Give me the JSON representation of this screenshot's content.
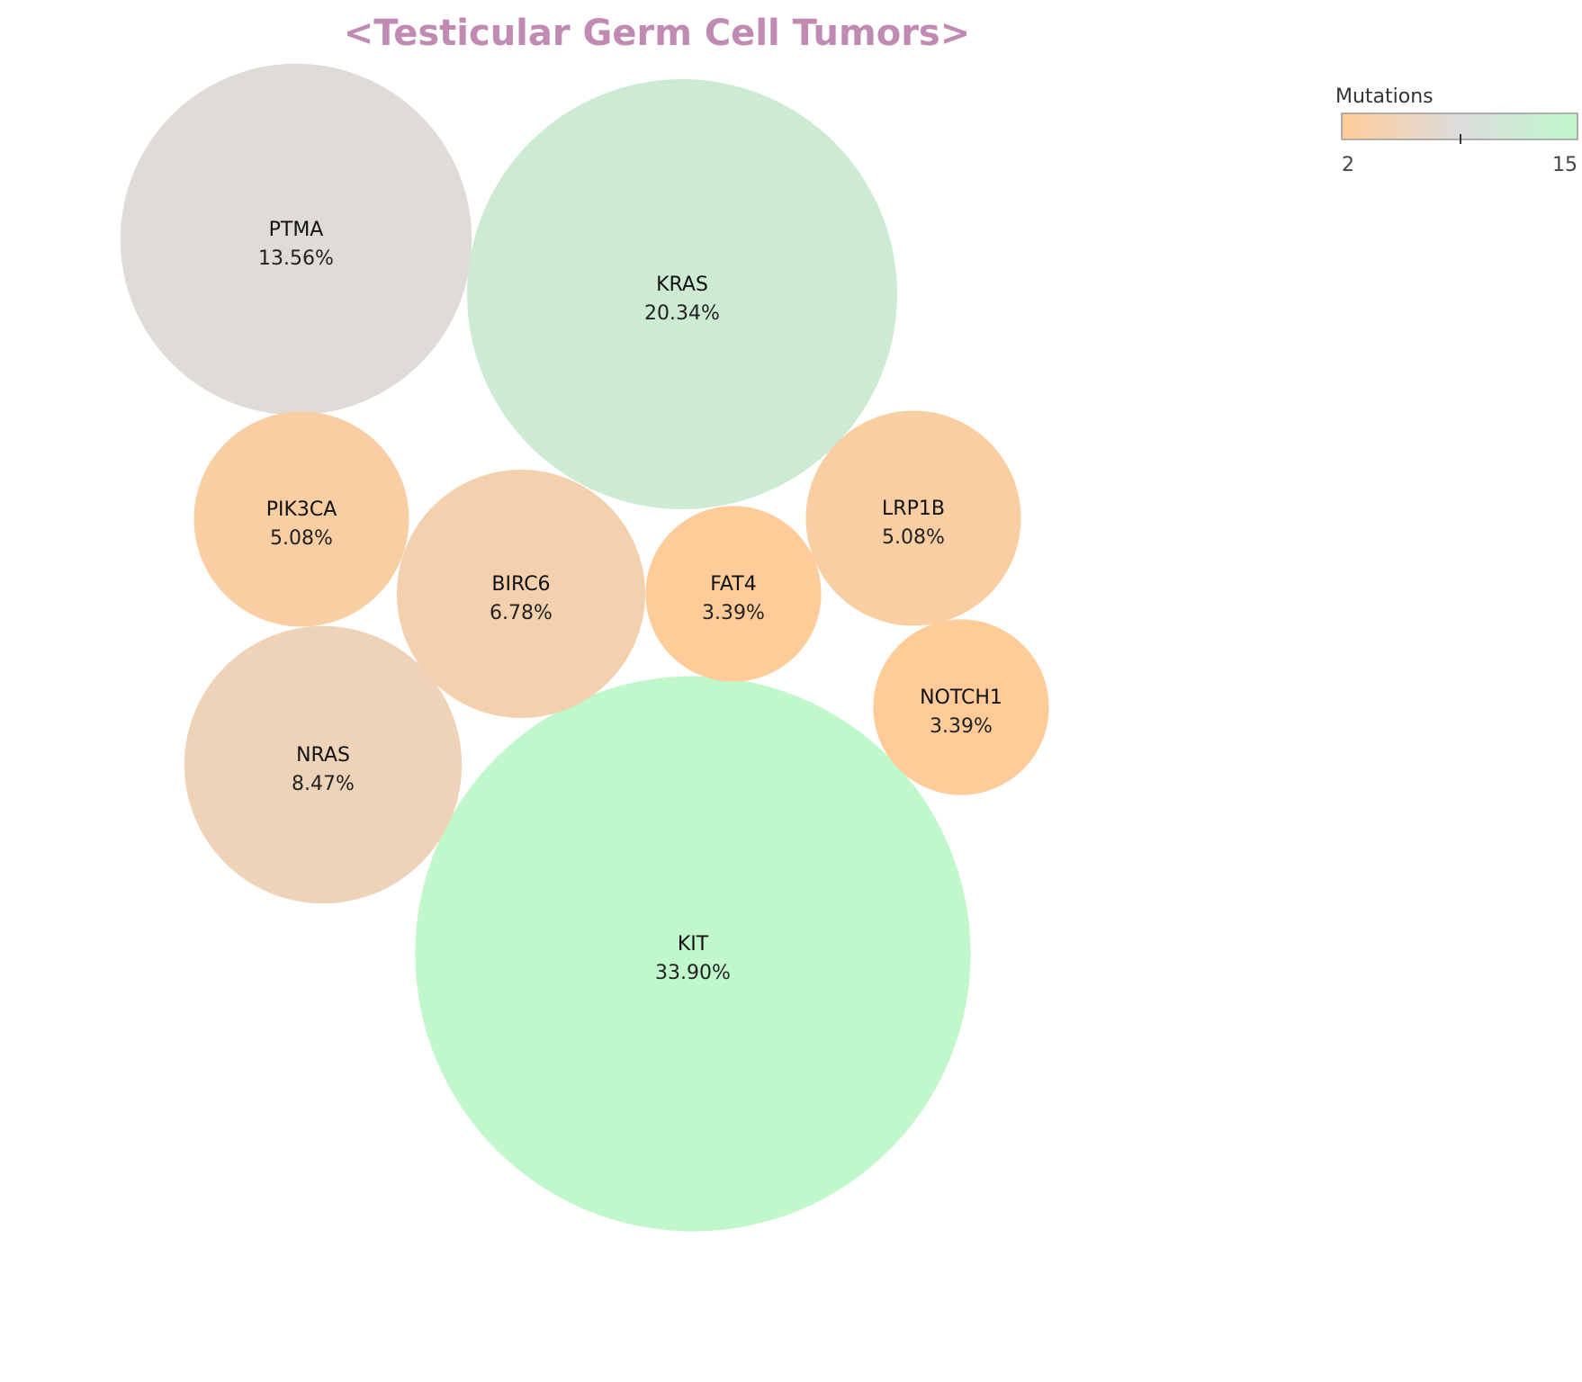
{
  "chart_data": {
    "type": "bubble",
    "title": "<Testicular Germ Cell Tumors>",
    "colors": {
      "title": "#c08ab2",
      "scale_low": "#ffcc99",
      "scale_mid": "#dcdcdc",
      "scale_high": "#c0f8cc"
    },
    "legend": {
      "title": "Mutations",
      "min_label": "2",
      "max_label": "15",
      "min": 2,
      "max": 15,
      "placement": "top-right"
    },
    "bubbles": [
      {
        "label": "KIT",
        "value_label": "33.90%",
        "percent": 33.9,
        "mutations": 20
      },
      {
        "label": "KRAS",
        "value_label": "20.34%",
        "percent": 20.34,
        "mutations": 12
      },
      {
        "label": "PTMA",
        "value_label": "13.56%",
        "percent": 13.56,
        "mutations": 8
      },
      {
        "label": "NRAS",
        "value_label": "8.47%",
        "percent": 8.47,
        "mutations": 5
      },
      {
        "label": "BIRC6",
        "value_label": "6.78%",
        "percent": 6.78,
        "mutations": 4
      },
      {
        "label": "PIK3CA",
        "value_label": "5.08%",
        "percent": 5.08,
        "mutations": 3
      },
      {
        "label": "LRP1B",
        "value_label": "5.08%",
        "percent": 5.08,
        "mutations": 3
      },
      {
        "label": "FAT4",
        "value_label": "3.39%",
        "percent": 3.39,
        "mutations": 2
      },
      {
        "label": "NOTCH1",
        "value_label": "3.39%",
        "percent": 3.39,
        "mutations": 2
      }
    ]
  }
}
